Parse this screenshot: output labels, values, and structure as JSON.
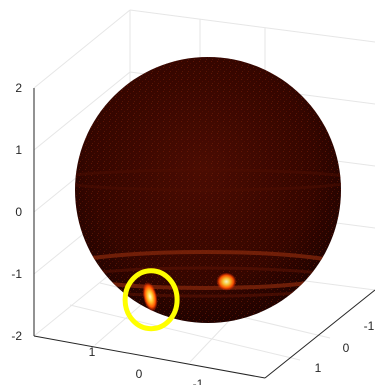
{
  "chart_data": {
    "type": "surface",
    "title": "",
    "xlabel": "",
    "ylabel": "",
    "zlabel": "",
    "x_ticks": [
      "1",
      "0",
      "-1"
    ],
    "y_ticks": [
      "-1",
      "0",
      "1"
    ],
    "z_ticks": [
      "2",
      "1",
      "0",
      "-1",
      "-2"
    ],
    "z_range": [
      -2,
      2
    ],
    "grid": true,
    "colormap": "hot",
    "surface": "sphere",
    "sphere_radius": 1.6,
    "hotspots": [
      {
        "name": "circled-hotspot",
        "x": 0.6,
        "y": -0.55,
        "z": -1.3,
        "intensity": 1.0,
        "highlighted": true
      },
      {
        "name": "right-hotspot",
        "x": -0.1,
        "y": 0.3,
        "z": -1.1,
        "intensity": 0.95,
        "highlighted": false
      }
    ],
    "highlight_color": "#ffff00",
    "colors": {
      "background": "#ffffff",
      "grid": "#e6e6e6",
      "axis": "#262626",
      "sphere_base": "#3a0800",
      "hot": "#ffcc33"
    }
  }
}
